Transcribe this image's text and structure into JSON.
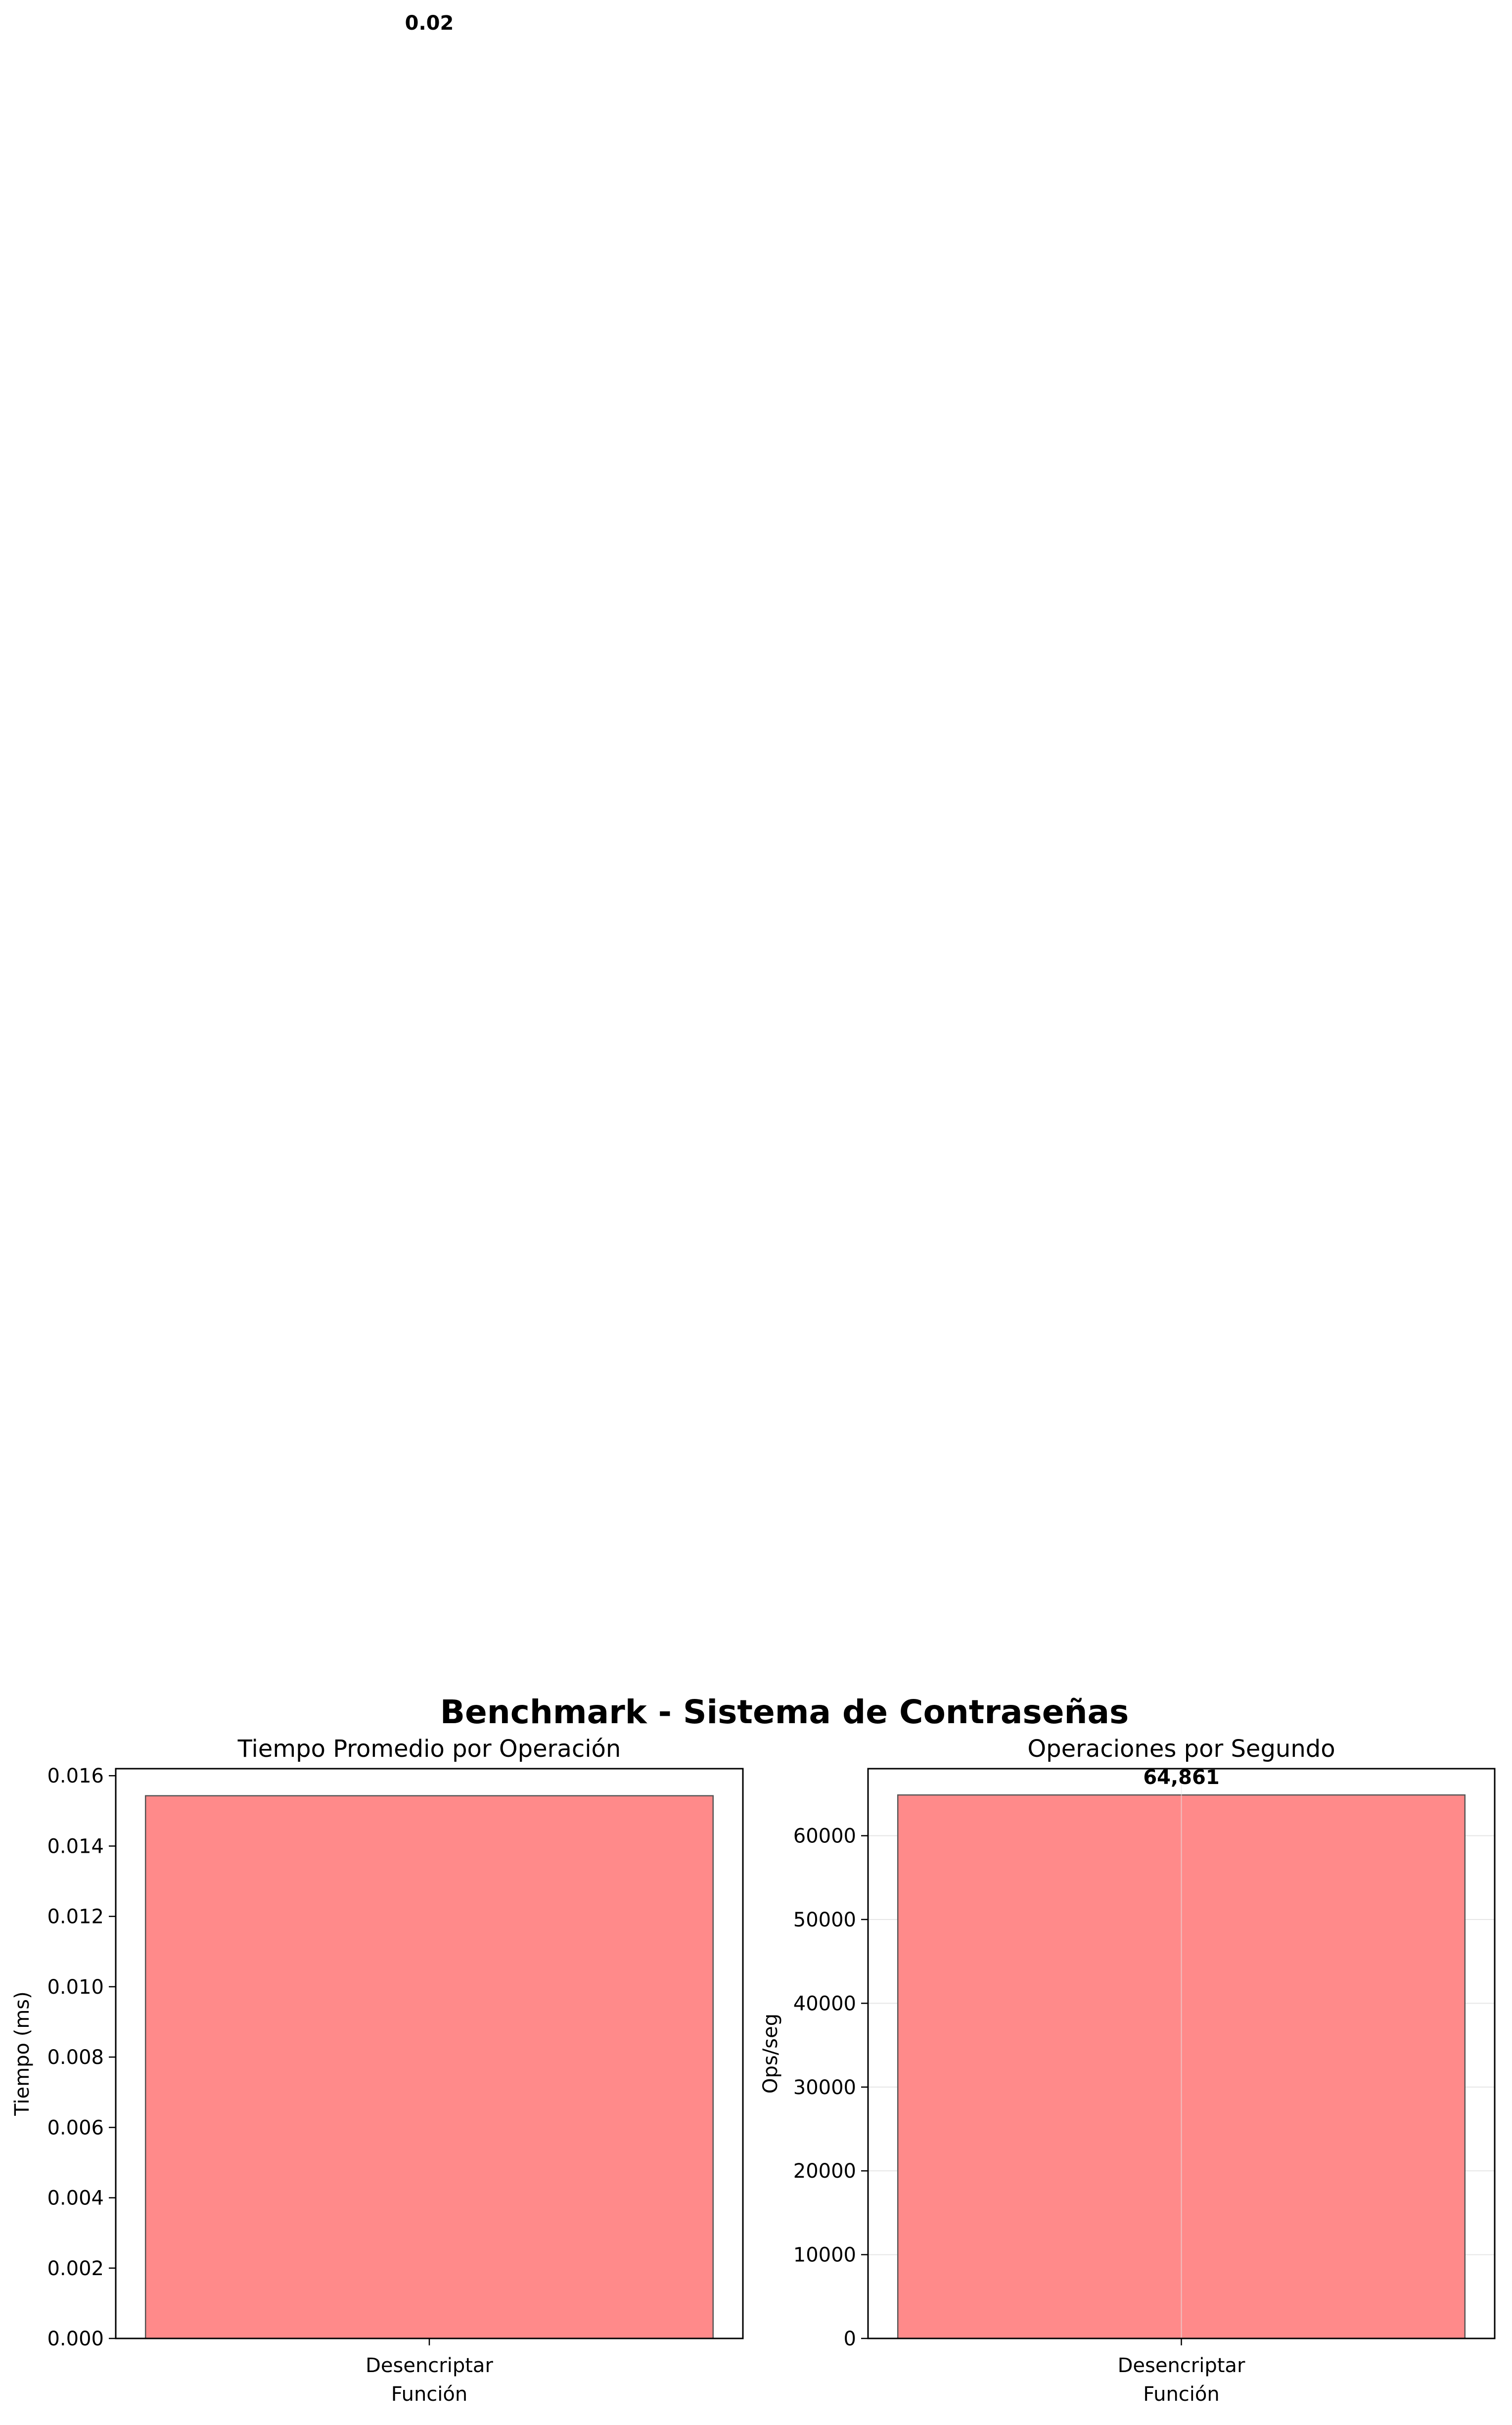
{
  "figure": {
    "suptitle": "Benchmark - Sistema de Contraseñas"
  },
  "chart_data": [
    {
      "type": "bar",
      "title": "Tiempo Promedio por Operación",
      "xlabel": "Función",
      "ylabel": "Tiempo (ms)",
      "categories": [
        "Desencriptar"
      ],
      "values": [
        0.01543
      ],
      "value_labels": [
        "0.02"
      ],
      "ylim": [
        0,
        0.0162
      ],
      "yticks": [
        0,
        0.002,
        0.004,
        0.006,
        0.008,
        0.01,
        0.012,
        0.014,
        0.016
      ],
      "ytick_labels": [
        "0.000",
        "0.002",
        "0.004",
        "0.006",
        "0.008",
        "0.010",
        "0.012",
        "0.014",
        "0.016"
      ],
      "grid": false,
      "bar_color": "#ff8a8a",
      "edge_color": "#555555"
    },
    {
      "type": "bar",
      "title": "Operaciones por Segundo",
      "xlabel": "Función",
      "ylabel": "Ops/seg",
      "categories": [
        "Desencriptar"
      ],
      "values": [
        64861
      ],
      "value_labels": [
        "64,861"
      ],
      "ylim": [
        0,
        68000
      ],
      "yticks": [
        0,
        10000,
        20000,
        30000,
        40000,
        50000,
        60000
      ],
      "ytick_labels": [
        "0",
        "10000",
        "20000",
        "30000",
        "40000",
        "50000",
        "60000"
      ],
      "grid": true,
      "bar_color": "#ff8a8a",
      "edge_color": "#555555"
    }
  ]
}
